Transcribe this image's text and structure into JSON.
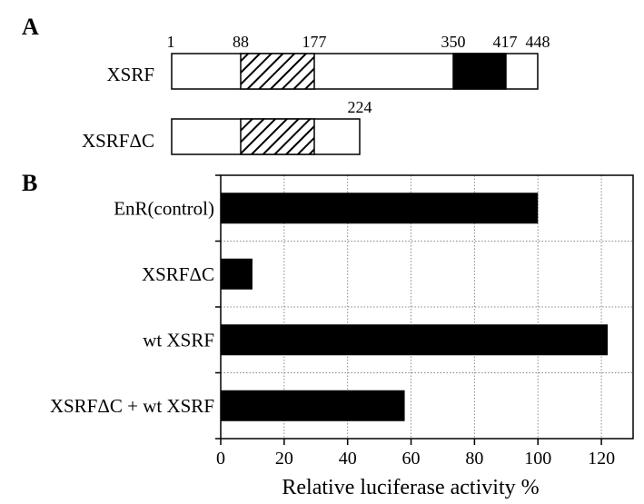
{
  "panel_a": {
    "letter": "A",
    "constructs": [
      {
        "name": "XSRF",
        "length": 448,
        "markers": [
          "1",
          "88",
          "177",
          "350",
          "417",
          "448"
        ],
        "hatched_region": [
          88,
          177
        ],
        "black_region": [
          350,
          417
        ]
      },
      {
        "name": "XSRFΔC",
        "length": 224,
        "markers": [
          "224"
        ],
        "hatched_region": [
          88,
          177
        ]
      }
    ]
  },
  "panel_b": {
    "letter": "B"
  },
  "chart_data": {
    "type": "bar",
    "orientation": "horizontal",
    "categories": [
      "EnR(control)",
      "XSRFΔC",
      "wt XSRF",
      "XSRFΔC + wt XSRF"
    ],
    "values": [
      100,
      10,
      122,
      58
    ],
    "xlabel": "Relative luciferase activity %",
    "xlim": [
      0,
      130
    ],
    "xticks": [
      0,
      20,
      40,
      60,
      80,
      100,
      120
    ],
    "grid": true,
    "bar_color": "#000000"
  }
}
